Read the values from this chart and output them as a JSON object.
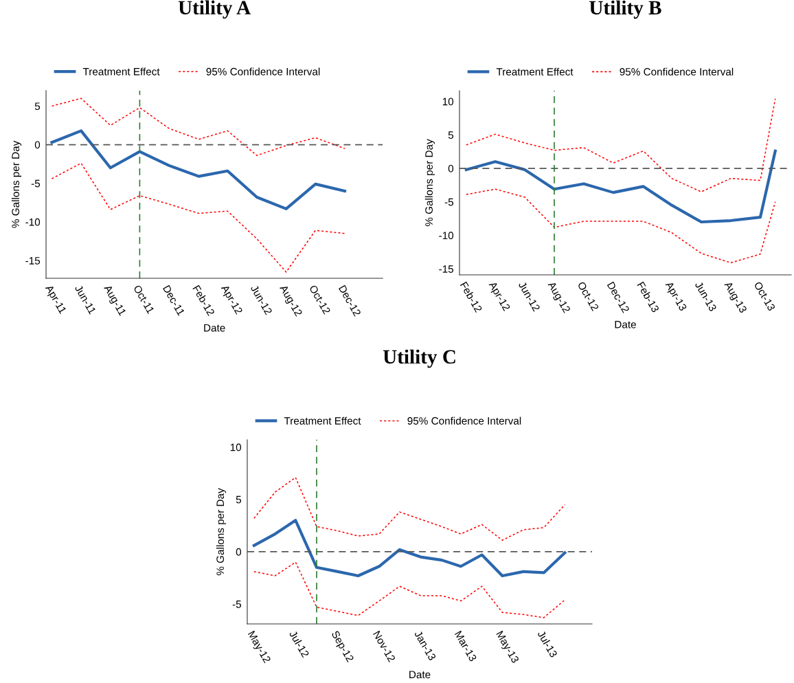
{
  "chart_data": [
    {
      "type": "line",
      "title": "Utility A",
      "xlabel": "Date",
      "ylabel": "% Gallons per Day",
      "x": [
        "2011-04",
        "2011-06",
        "2011-08",
        "2011-10",
        "2011-12",
        "2012-02",
        "2012-04",
        "2012-06",
        "2012-08",
        "2012-10",
        "2012-12"
      ],
      "series": [
        {
          "name": "Treatment Effect",
          "color": "#2b67ad",
          "line_style": "solid",
          "values": [
            0.3,
            1.8,
            -3.0,
            -0.9,
            -2.7,
            -4.1,
            -3.4,
            -6.8,
            -8.3,
            -5.1,
            -6.0
          ]
        },
        {
          "name": "95% Confidence Interval",
          "color": "#ff0000",
          "line_style": "dotted",
          "values": [
            5.0,
            6.0,
            2.5,
            4.8,
            2.1,
            0.7,
            1.8,
            -1.4,
            -0.1,
            0.9,
            -0.5
          ]
        },
        {
          "color": "#ff0000",
          "line_style": "dotted",
          "values": [
            -4.4,
            -2.4,
            -8.4,
            -6.6,
            -7.7,
            -8.9,
            -8.6,
            -12.2,
            -16.5,
            -11.1,
            -11.5
          ]
        }
      ],
      "xlim": [
        "2011-03-20",
        "2013-02-18"
      ],
      "xticks": [
        {
          "value": "2011-04",
          "label": "Apr-11"
        },
        {
          "value": "2011-06",
          "label": "Jun-11"
        },
        {
          "value": "2011-08",
          "label": "Aug-11"
        },
        {
          "value": "2011-10",
          "label": "Oct-11"
        },
        {
          "value": "2011-12",
          "label": "Dec-11"
        },
        {
          "value": "2012-02",
          "label": "Feb-12"
        },
        {
          "value": "2012-04",
          "label": "Apr-12"
        },
        {
          "value": "2012-06",
          "label": "Jun-12"
        },
        {
          "value": "2012-08",
          "label": "Aug-12"
        },
        {
          "value": "2012-10",
          "label": "Oct-12"
        },
        {
          "value": "2012-12",
          "label": "Dec-12"
        }
      ],
      "ylim": [
        -17.3,
        7.0
      ],
      "yticks": [
        5,
        0,
        -5,
        -10,
        -15
      ],
      "ref_lines": [
        {
          "axis": "y",
          "value": 0,
          "color": "#555555",
          "line_style": "dashed"
        },
        {
          "axis": "x",
          "value": "2011-10",
          "color": "#2e7d32",
          "line_style": "dashed"
        }
      ],
      "legend": "top left",
      "grid": false
    },
    {
      "type": "line",
      "title": "Utility B",
      "xlabel": "Date",
      "ylabel": "% Gallons per Day",
      "x": [
        "2012-02",
        "2012-04",
        "2012-06",
        "2012-08",
        "2012-10",
        "2012-12",
        "2013-02",
        "2013-04",
        "2013-06",
        "2013-08",
        "2013-10",
        "2013-11"
      ],
      "series": [
        {
          "name": "Treatment Effect",
          "color": "#2b67ad",
          "line_style": "solid",
          "values": [
            -0.2,
            1.0,
            -0.2,
            -3.1,
            -2.3,
            -3.6,
            -2.7,
            -5.5,
            -8.0,
            -7.8,
            -7.3,
            2.6
          ]
        },
        {
          "name": "95% Confidence Interval",
          "color": "#ff0000",
          "line_style": "dotted",
          "values": [
            3.5,
            5.1,
            3.8,
            2.7,
            3.1,
            0.8,
            2.6,
            -1.5,
            -3.5,
            -1.5,
            -1.8,
            10.4
          ]
        },
        {
          "color": "#ff0000",
          "line_style": "dotted",
          "values": [
            -3.9,
            -3.1,
            -4.3,
            -8.8,
            -7.9,
            -7.9,
            -7.9,
            -9.6,
            -12.7,
            -14.1,
            -12.8,
            -5.0
          ]
        }
      ],
      "xlim": [
        "2012-01-18",
        "2013-12-04"
      ],
      "xticks": [
        {
          "value": "2012-02",
          "label": "Feb-12"
        },
        {
          "value": "2012-04",
          "label": "Apr-12"
        },
        {
          "value": "2012-06",
          "label": "Jun-12"
        },
        {
          "value": "2012-08",
          "label": "Aug-12"
        },
        {
          "value": "2012-10",
          "label": "Oct-12"
        },
        {
          "value": "2012-12",
          "label": "Dec-12"
        },
        {
          "value": "2013-02",
          "label": "Feb-13"
        },
        {
          "value": "2013-04",
          "label": "Apr-13"
        },
        {
          "value": "2013-06",
          "label": "Jun-13"
        },
        {
          "value": "2013-08",
          "label": "Aug-13"
        },
        {
          "value": "2013-10",
          "label": "Oct-13"
        }
      ],
      "ylim": [
        -15.9,
        11.6
      ],
      "yticks": [
        10,
        5,
        0,
        -5,
        -10,
        -15
      ],
      "ref_lines": [
        {
          "axis": "y",
          "value": 0,
          "color": "#555555",
          "line_style": "dashed"
        },
        {
          "axis": "x",
          "value": "2012-08",
          "color": "#2e7d32",
          "line_style": "dashed"
        }
      ],
      "legend": "top left",
      "grid": false
    },
    {
      "type": "line",
      "title": "Utility C",
      "xlabel": "Date",
      "ylabel": "% Gallons per Day",
      "x": [
        "2012-05",
        "2012-06",
        "2012-07",
        "2012-08",
        "2012-09",
        "2012-10",
        "2012-11",
        "2012-12",
        "2013-01",
        "2013-02",
        "2013-03",
        "2013-04",
        "2013-05",
        "2013-06",
        "2013-07",
        "2013-08"
      ],
      "series": [
        {
          "name": "Treatment Effect",
          "color": "#2b67ad",
          "line_style": "solid",
          "values": [
            0.6,
            1.7,
            3.0,
            -1.5,
            -1.9,
            -2.3,
            -1.4,
            0.2,
            -0.5,
            -0.8,
            -1.4,
            -0.3,
            -2.3,
            -1.9,
            -2.0,
            -0.1
          ]
        },
        {
          "name": "95% Confidence Interval",
          "color": "#ff0000",
          "line_style": "dotted",
          "values": [
            3.2,
            5.7,
            7.1,
            2.4,
            2.0,
            1.5,
            1.7,
            3.8,
            3.1,
            2.4,
            1.7,
            2.6,
            1.1,
            2.1,
            2.3,
            4.5
          ]
        },
        {
          "color": "#ff0000",
          "line_style": "dotted",
          "values": [
            -1.9,
            -2.3,
            -1.0,
            -5.3,
            -5.7,
            -6.1,
            -4.7,
            -3.3,
            -4.2,
            -4.2,
            -4.7,
            -3.3,
            -5.8,
            -6.0,
            -6.3,
            -4.6
          ]
        }
      ],
      "xlim": [
        "2012-04-21",
        "2013-09-10"
      ],
      "xticks": [
        {
          "value": "2012-05",
          "label": "May-12"
        },
        {
          "value": "2012-07",
          "label": "Jul-12"
        },
        {
          "value": "2012-09",
          "label": "Sep-12"
        },
        {
          "value": "2012-11",
          "label": "Nov-12"
        },
        {
          "value": "2013-01",
          "label": "Jan-13"
        },
        {
          "value": "2013-03",
          "label": "Mar-13"
        },
        {
          "value": "2013-05",
          "label": "May-13"
        },
        {
          "value": "2013-07",
          "label": "Jul-13"
        }
      ],
      "ylim": [
        -6.9,
        10.7
      ],
      "yticks": [
        10,
        5,
        0,
        -5
      ],
      "ref_lines": [
        {
          "axis": "y",
          "value": 0,
          "color": "#555555",
          "line_style": "dashed"
        },
        {
          "axis": "x",
          "value": "2012-08",
          "color": "#2e7d32",
          "line_style": "dashed"
        }
      ],
      "legend": "top left",
      "grid": false
    }
  ]
}
